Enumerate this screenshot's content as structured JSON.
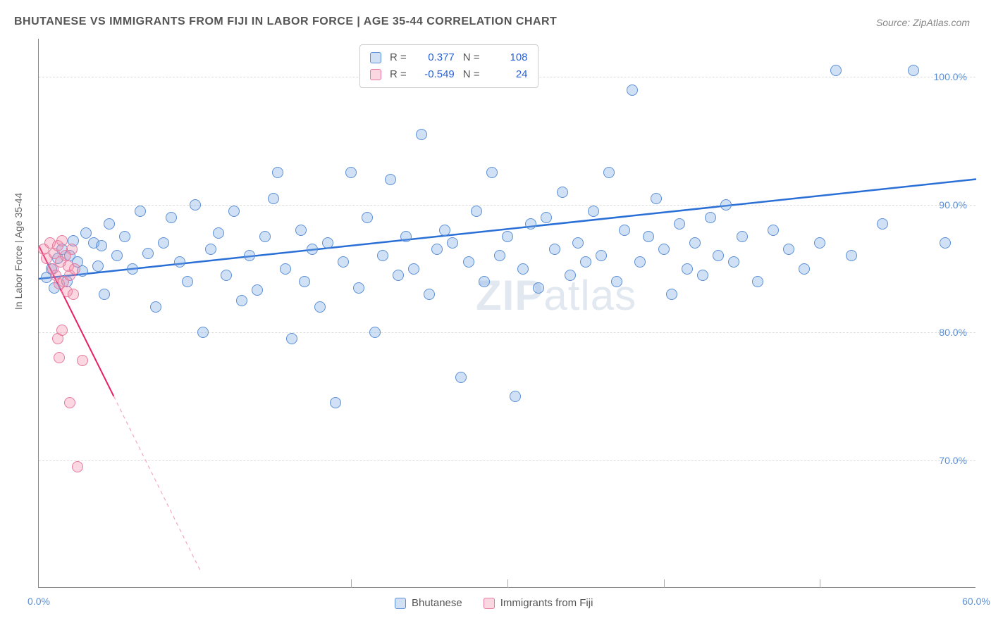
{
  "title": "BHUTANESE VS IMMIGRANTS FROM FIJI IN LABOR FORCE | AGE 35-44 CORRELATION CHART",
  "source": "Source: ZipAtlas.com",
  "ylabel": "In Labor Force | Age 35-44",
  "watermark_bold": "ZIP",
  "watermark_light": "atlas",
  "chart": {
    "type": "scatter",
    "xlim": [
      0,
      60
    ],
    "ylim": [
      60,
      103
    ],
    "xticks": [
      0,
      20,
      40,
      60
    ],
    "xtick_labels": [
      "0.0%",
      "",
      "",
      "60.0%"
    ],
    "yticks": [
      70,
      80,
      90,
      100
    ],
    "ytick_labels": [
      "70.0%",
      "80.0%",
      "90.0%",
      "100.0%"
    ],
    "grid_major_x": [
      20,
      30,
      40,
      50
    ],
    "background_color": "#ffffff",
    "grid_color": "#dddddd",
    "marker_radius": 8,
    "marker_stroke_width": 1.5,
    "series": [
      {
        "name": "Bhutanese",
        "fill": "rgba(120,170,230,0.35)",
        "stroke": "#5b8fd6",
        "R": "0.377",
        "N": "108",
        "trend": {
          "x1": 0,
          "y1": 84.2,
          "x2": 60,
          "y2": 92.0,
          "color": "#2a6fd6",
          "width": 2.5,
          "dash": "none"
        },
        "points": [
          [
            0.5,
            84.3
          ],
          [
            0.8,
            85.0
          ],
          [
            1.0,
            83.5
          ],
          [
            1.2,
            85.8
          ],
          [
            1.5,
            86.5
          ],
          [
            1.8,
            84.0
          ],
          [
            2.0,
            86.0
          ],
          [
            2.2,
            87.2
          ],
          [
            2.5,
            85.5
          ],
          [
            2.8,
            84.8
          ],
          [
            3.0,
            87.8
          ],
          [
            3.5,
            87.0
          ],
          [
            3.8,
            85.2
          ],
          [
            4.0,
            86.8
          ],
          [
            4.2,
            83.0
          ],
          [
            4.5,
            88.5
          ],
          [
            5.0,
            86.0
          ],
          [
            5.5,
            87.5
          ],
          [
            6.0,
            85.0
          ],
          [
            6.5,
            89.5
          ],
          [
            7.0,
            86.2
          ],
          [
            7.5,
            82.0
          ],
          [
            8.0,
            87.0
          ],
          [
            8.5,
            89.0
          ],
          [
            9.0,
            85.5
          ],
          [
            9.5,
            84.0
          ],
          [
            10.0,
            90.0
          ],
          [
            10.5,
            80.0
          ],
          [
            11.0,
            86.5
          ],
          [
            11.5,
            87.8
          ],
          [
            12.0,
            84.5
          ],
          [
            12.5,
            89.5
          ],
          [
            13.0,
            82.5
          ],
          [
            13.5,
            86.0
          ],
          [
            14.0,
            83.3
          ],
          [
            14.5,
            87.5
          ],
          [
            15.0,
            90.5
          ],
          [
            15.3,
            92.5
          ],
          [
            15.8,
            85.0
          ],
          [
            16.2,
            79.5
          ],
          [
            16.8,
            88.0
          ],
          [
            17.0,
            84.0
          ],
          [
            17.5,
            86.5
          ],
          [
            18.0,
            82.0
          ],
          [
            18.5,
            87.0
          ],
          [
            19.0,
            74.5
          ],
          [
            19.5,
            85.5
          ],
          [
            20.0,
            92.5
          ],
          [
            20.5,
            83.5
          ],
          [
            21.0,
            89.0
          ],
          [
            21.5,
            80.0
          ],
          [
            22.0,
            86.0
          ],
          [
            22.5,
            92.0
          ],
          [
            23.0,
            84.5
          ],
          [
            23.5,
            87.5
          ],
          [
            24.0,
            85.0
          ],
          [
            24.5,
            95.5
          ],
          [
            25.0,
            83.0
          ],
          [
            25.5,
            86.5
          ],
          [
            26.0,
            88.0
          ],
          [
            26.5,
            87.0
          ],
          [
            27.0,
            76.5
          ],
          [
            27.5,
            85.5
          ],
          [
            28.0,
            89.5
          ],
          [
            28.5,
            84.0
          ],
          [
            29.0,
            92.5
          ],
          [
            29.5,
            86.0
          ],
          [
            30.0,
            87.5
          ],
          [
            30.5,
            75.0
          ],
          [
            31.0,
            85.0
          ],
          [
            31.5,
            88.5
          ],
          [
            32.0,
            83.5
          ],
          [
            32.5,
            89.0
          ],
          [
            33.0,
            86.5
          ],
          [
            33.5,
            91.0
          ],
          [
            34.0,
            84.5
          ],
          [
            34.5,
            87.0
          ],
          [
            35.0,
            85.5
          ],
          [
            35.5,
            89.5
          ],
          [
            36.0,
            86.0
          ],
          [
            36.5,
            92.5
          ],
          [
            37.0,
            84.0
          ],
          [
            37.5,
            88.0
          ],
          [
            38.0,
            99.0
          ],
          [
            38.5,
            85.5
          ],
          [
            39.0,
            87.5
          ],
          [
            39.5,
            90.5
          ],
          [
            40.0,
            86.5
          ],
          [
            40.5,
            83.0
          ],
          [
            41.0,
            88.5
          ],
          [
            41.5,
            85.0
          ],
          [
            42.0,
            87.0
          ],
          [
            42.5,
            84.5
          ],
          [
            43.0,
            89.0
          ],
          [
            43.5,
            86.0
          ],
          [
            44.0,
            90.0
          ],
          [
            44.5,
            85.5
          ],
          [
            45.0,
            87.5
          ],
          [
            46.0,
            84.0
          ],
          [
            47.0,
            88.0
          ],
          [
            48.0,
            86.5
          ],
          [
            49.0,
            85.0
          ],
          [
            50.0,
            87.0
          ],
          [
            51.0,
            100.5
          ],
          [
            52.0,
            86.0
          ],
          [
            54.0,
            88.5
          ],
          [
            56.0,
            100.5
          ],
          [
            58.0,
            87.0
          ]
        ]
      },
      {
        "name": "Immigrants from Fiji",
        "fill": "rgba(240,140,170,0.35)",
        "stroke": "#e67aa0",
        "R": "-0.549",
        "N": "24",
        "trend": {
          "x1": 0,
          "y1": 86.8,
          "x2": 4.8,
          "y2": 75.0,
          "color": "#e91e63",
          "width": 2,
          "dash": "none"
        },
        "trend_ext": {
          "x1": 4.8,
          "y1": 75.0,
          "x2": 10.4,
          "y2": 61.2,
          "color": "#f5a6c0",
          "width": 1.2,
          "dash": "5,5"
        },
        "points": [
          [
            0.3,
            86.5
          ],
          [
            0.5,
            85.8
          ],
          [
            0.7,
            87.0
          ],
          [
            0.9,
            85.0
          ],
          [
            1.0,
            86.2
          ],
          [
            1.1,
            84.5
          ],
          [
            1.2,
            86.8
          ],
          [
            1.3,
            83.8
          ],
          [
            1.4,
            85.5
          ],
          [
            1.5,
            87.2
          ],
          [
            1.6,
            84.0
          ],
          [
            1.7,
            86.0
          ],
          [
            1.8,
            83.2
          ],
          [
            1.9,
            85.2
          ],
          [
            2.0,
            84.5
          ],
          [
            2.1,
            86.5
          ],
          [
            2.2,
            83.0
          ],
          [
            2.3,
            85.0
          ],
          [
            1.2,
            79.5
          ],
          [
            1.3,
            78.0
          ],
          [
            1.5,
            80.2
          ],
          [
            2.8,
            77.8
          ],
          [
            2.0,
            74.5
          ],
          [
            2.5,
            69.5
          ]
        ]
      }
    ]
  },
  "stat_legend": {
    "rows": [
      {
        "swatch_fill": "rgba(120,170,230,0.35)",
        "swatch_stroke": "#5b8fd6",
        "r_label": "R =",
        "r_val": "0.377",
        "n_label": "N =",
        "n_val": "108"
      },
      {
        "swatch_fill": "rgba(240,140,170,0.35)",
        "swatch_stroke": "#e67aa0",
        "r_label": "R =",
        "r_val": "-0.549",
        "n_label": "N =",
        "n_val": "24"
      }
    ]
  },
  "bottom_legend": {
    "items": [
      {
        "swatch_fill": "rgba(120,170,230,0.35)",
        "swatch_stroke": "#5b8fd6",
        "label": "Bhutanese"
      },
      {
        "swatch_fill": "rgba(240,140,170,0.35)",
        "swatch_stroke": "#e67aa0",
        "label": "Immigrants from Fiji"
      }
    ]
  }
}
